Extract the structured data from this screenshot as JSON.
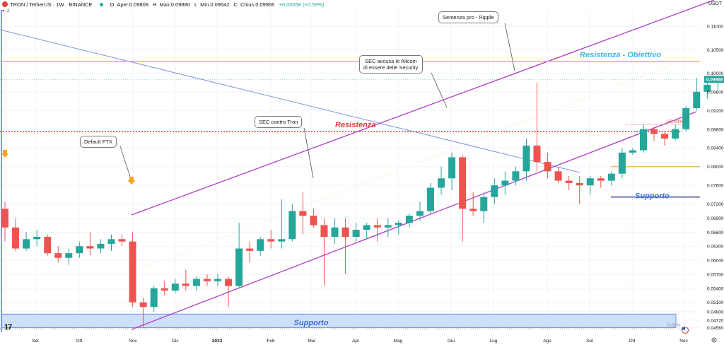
{
  "header": {
    "symbol": "TRON / TetherUS · 1W · BINANCE",
    "open_label": "O",
    "open": "Aper.0.09808",
    "high_label": "H",
    "high": "Max.0.09880",
    "low_label": "L",
    "low": "Min.0.09642",
    "close_label": "C",
    "close": "Chius.0.09866",
    "change": "+0.00058 (+0.59%)",
    "indicator_count": "2"
  },
  "currency_label": "USDT",
  "colors": {
    "up": "#26a69a",
    "down": "#ef5350",
    "channel": "#b03fc4",
    "blue_line": "#7e96d8",
    "resistance": "#d0342c",
    "target": "#f0b04a",
    "support_box": "#c5d9fb",
    "support_text": "#3d6fd8"
  },
  "annotations": {
    "default_ftx": "Default FTX",
    "sec_tron": "SEC contro Tron",
    "sec_altcoin_1": "SEC accusa le Altcoin",
    "sec_altcoin_2": "di essere delle Security",
    "ripple": "Sentenza pro - Ripple",
    "resistenza": "Resistenza",
    "resistenza_obiettivo": "Resistenza - Obiettivo",
    "supporto_right": "Supporto",
    "supporto_box": "Supporto",
    "fib_50": "50.00%",
    "fib_0": "0.00%"
  },
  "chart_data": {
    "type": "candlestick",
    "y_axis": {
      "min": 0.0446,
      "max": 0.1135,
      "ticks": [
        "0.11000",
        "0.10500",
        "0.10000",
        "0.09600",
        "0.09200",
        "0.08800",
        "0.08400",
        "0.08000",
        "0.07600",
        "0.07200",
        "0.06900",
        "0.06600",
        "0.06300",
        "0.06000",
        "0.05700",
        "0.05400",
        "0.05100",
        "0.04900",
        "0.04720",
        "0.04560"
      ],
      "last_price": "0.09866"
    },
    "x_axis": {
      "ticks": [
        "Set",
        "Ott",
        "Nov",
        "Dic",
        "2023",
        "Feb",
        "Mar",
        "Apr",
        "Mag",
        "Giu",
        "Lug",
        "Ago",
        "Set",
        "Ott",
        "Nov"
      ]
    },
    "candles": [
      {
        "o": 0.071,
        "h": 0.0725,
        "l": 0.064,
        "c": 0.067
      },
      {
        "o": 0.067,
        "h": 0.069,
        "l": 0.062,
        "c": 0.0625
      },
      {
        "o": 0.0625,
        "h": 0.066,
        "l": 0.062,
        "c": 0.0645
      },
      {
        "o": 0.0645,
        "h": 0.0665,
        "l": 0.063,
        "c": 0.065
      },
      {
        "o": 0.065,
        "h": 0.0655,
        "l": 0.061,
        "c": 0.0615
      },
      {
        "o": 0.0615,
        "h": 0.063,
        "l": 0.0595,
        "c": 0.0605
      },
      {
        "o": 0.0605,
        "h": 0.0625,
        "l": 0.059,
        "c": 0.0615
      },
      {
        "o": 0.0615,
        "h": 0.064,
        "l": 0.0605,
        "c": 0.063
      },
      {
        "o": 0.063,
        "h": 0.066,
        "l": 0.061,
        "c": 0.0625
      },
      {
        "o": 0.0625,
        "h": 0.0645,
        "l": 0.0615,
        "c": 0.0635
      },
      {
        "o": 0.0635,
        "h": 0.0655,
        "l": 0.062,
        "c": 0.0645
      },
      {
        "o": 0.0645,
        "h": 0.0655,
        "l": 0.063,
        "c": 0.064
      },
      {
        "o": 0.064,
        "h": 0.066,
        "l": 0.05,
        "c": 0.051
      },
      {
        "o": 0.051,
        "h": 0.052,
        "l": 0.0456,
        "c": 0.05
      },
      {
        "o": 0.05,
        "h": 0.0545,
        "l": 0.049,
        "c": 0.054
      },
      {
        "o": 0.054,
        "h": 0.0555,
        "l": 0.0525,
        "c": 0.0535
      },
      {
        "o": 0.0535,
        "h": 0.056,
        "l": 0.053,
        "c": 0.055
      },
      {
        "o": 0.055,
        "h": 0.058,
        "l": 0.0535,
        "c": 0.0545
      },
      {
        "o": 0.0545,
        "h": 0.0565,
        "l": 0.0535,
        "c": 0.056
      },
      {
        "o": 0.056,
        "h": 0.057,
        "l": 0.0545,
        "c": 0.0555
      },
      {
        "o": 0.0555,
        "h": 0.057,
        "l": 0.0545,
        "c": 0.056
      },
      {
        "o": 0.056,
        "h": 0.0565,
        "l": 0.05,
        "c": 0.0545
      },
      {
        "o": 0.0545,
        "h": 0.068,
        "l": 0.054,
        "c": 0.0625
      },
      {
        "o": 0.0625,
        "h": 0.064,
        "l": 0.0595,
        "c": 0.062
      },
      {
        "o": 0.062,
        "h": 0.065,
        "l": 0.061,
        "c": 0.0645
      },
      {
        "o": 0.0645,
        "h": 0.0665,
        "l": 0.0625,
        "c": 0.064
      },
      {
        "o": 0.064,
        "h": 0.073,
        "l": 0.0625,
        "c": 0.0645
      },
      {
        "o": 0.0645,
        "h": 0.072,
        "l": 0.064,
        "c": 0.0705
      },
      {
        "o": 0.0705,
        "h": 0.0745,
        "l": 0.0655,
        "c": 0.0695
      },
      {
        "o": 0.0695,
        "h": 0.071,
        "l": 0.067,
        "c": 0.0675
      },
      {
        "o": 0.0675,
        "h": 0.069,
        "l": 0.0545,
        "c": 0.065
      },
      {
        "o": 0.065,
        "h": 0.069,
        "l": 0.0635,
        "c": 0.067
      },
      {
        "o": 0.067,
        "h": 0.069,
        "l": 0.057,
        "c": 0.065
      },
      {
        "o": 0.065,
        "h": 0.068,
        "l": 0.064,
        "c": 0.0665
      },
      {
        "o": 0.0665,
        "h": 0.068,
        "l": 0.0645,
        "c": 0.0675
      },
      {
        "o": 0.0675,
        "h": 0.069,
        "l": 0.064,
        "c": 0.067
      },
      {
        "o": 0.067,
        "h": 0.069,
        "l": 0.065,
        "c": 0.0675
      },
      {
        "o": 0.0675,
        "h": 0.0685,
        "l": 0.0655,
        "c": 0.068
      },
      {
        "o": 0.068,
        "h": 0.07,
        "l": 0.067,
        "c": 0.0695
      },
      {
        "o": 0.0695,
        "h": 0.0725,
        "l": 0.0685,
        "c": 0.0705
      },
      {
        "o": 0.0705,
        "h": 0.0765,
        "l": 0.07,
        "c": 0.0755
      },
      {
        "o": 0.0755,
        "h": 0.08,
        "l": 0.074,
        "c": 0.0775
      },
      {
        "o": 0.0775,
        "h": 0.083,
        "l": 0.075,
        "c": 0.082
      },
      {
        "o": 0.082,
        "h": 0.0825,
        "l": 0.064,
        "c": 0.071
      },
      {
        "o": 0.071,
        "h": 0.0745,
        "l": 0.0695,
        "c": 0.0705
      },
      {
        "o": 0.0705,
        "h": 0.0745,
        "l": 0.068,
        "c": 0.0735
      },
      {
        "o": 0.0735,
        "h": 0.0775,
        "l": 0.072,
        "c": 0.076
      },
      {
        "o": 0.076,
        "h": 0.079,
        "l": 0.074,
        "c": 0.077
      },
      {
        "o": 0.077,
        "h": 0.08,
        "l": 0.076,
        "c": 0.079
      },
      {
        "o": 0.079,
        "h": 0.086,
        "l": 0.077,
        "c": 0.0845
      },
      {
        "o": 0.0845,
        "h": 0.098,
        "l": 0.079,
        "c": 0.081
      },
      {
        "o": 0.081,
        "h": 0.083,
        "l": 0.0775,
        "c": 0.079
      },
      {
        "o": 0.079,
        "h": 0.08,
        "l": 0.0765,
        "c": 0.077
      },
      {
        "o": 0.077,
        "h": 0.078,
        "l": 0.075,
        "c": 0.0765
      },
      {
        "o": 0.0765,
        "h": 0.078,
        "l": 0.072,
        "c": 0.076
      },
      {
        "o": 0.076,
        "h": 0.078,
        "l": 0.074,
        "c": 0.0775
      },
      {
        "o": 0.0775,
        "h": 0.078,
        "l": 0.0755,
        "c": 0.077
      },
      {
        "o": 0.077,
        "h": 0.079,
        "l": 0.076,
        "c": 0.0785
      },
      {
        "o": 0.0785,
        "h": 0.084,
        "l": 0.0775,
        "c": 0.083
      },
      {
        "o": 0.083,
        "h": 0.084,
        "l": 0.0825,
        "c": 0.0835
      },
      {
        "o": 0.0835,
        "h": 0.089,
        "l": 0.083,
        "c": 0.088
      },
      {
        "o": 0.088,
        "h": 0.0885,
        "l": 0.0855,
        "c": 0.087
      },
      {
        "o": 0.087,
        "h": 0.0875,
        "l": 0.0845,
        "c": 0.086
      },
      {
        "o": 0.086,
        "h": 0.089,
        "l": 0.0855,
        "c": 0.088
      },
      {
        "o": 0.088,
        "h": 0.093,
        "l": 0.0875,
        "c": 0.0925
      },
      {
        "o": 0.0925,
        "h": 0.099,
        "l": 0.092,
        "c": 0.096
      },
      {
        "o": 0.096,
        "h": 0.0985,
        "l": 0.0945,
        "c": 0.0975
      },
      {
        "o": 0.09808,
        "h": 0.0988,
        "l": 0.09642,
        "c": 0.09866
      }
    ],
    "levels": {
      "resistenza_obiettivo": 0.1025,
      "resistenza": 0.0875,
      "fib_50": 0.089,
      "supporto": 0.0735,
      "orange_short": 0.08,
      "support_box_top": 0.0485,
      "support_box_bottom": 0.0456
    }
  }
}
